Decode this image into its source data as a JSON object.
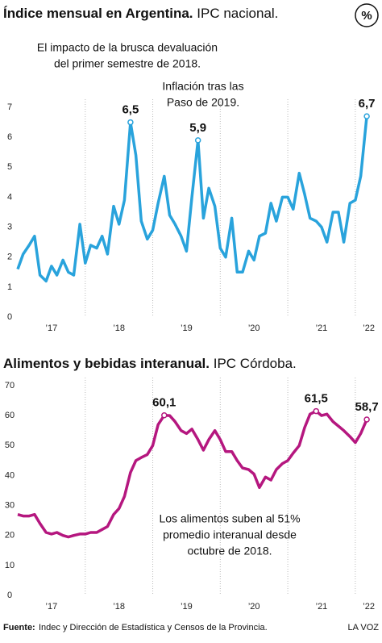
{
  "chart_data": [
    {
      "type": "line",
      "title": "Índice mensual en Argentina.",
      "subtitle": "IPC nacional.",
      "badge": "%",
      "annotations": [
        [
          "El impacto de la brusca devaluación",
          "del primer semestre de 2018."
        ],
        [
          "Inflación tras las",
          "Paso de 2019."
        ]
      ],
      "x": [
        2017,
        2017.08,
        2017.17,
        2017.25,
        2017.33,
        2017.42,
        2017.5,
        2017.58,
        2017.67,
        2017.75,
        2017.83,
        2017.92,
        2018,
        2018.08,
        2018.17,
        2018.25,
        2018.33,
        2018.42,
        2018.5,
        2018.58,
        2018.67,
        2018.75,
        2018.83,
        2018.92,
        2019,
        2019.08,
        2019.17,
        2019.25,
        2019.33,
        2019.42,
        2019.5,
        2019.58,
        2019.67,
        2019.75,
        2019.83,
        2019.92,
        2020,
        2020.08,
        2020.17,
        2020.25,
        2020.33,
        2020.42,
        2020.5,
        2020.58,
        2020.67,
        2020.75,
        2020.83,
        2020.92,
        2021,
        2021.08,
        2021.17,
        2021.25,
        2021.33,
        2021.42,
        2021.5,
        2021.58,
        2021.67,
        2021.75,
        2021.83,
        2021.92,
        2022,
        2022.08,
        2022.17
      ],
      "values": [
        1.6,
        2.1,
        2.4,
        2.7,
        1.4,
        1.2,
        1.7,
        1.4,
        1.9,
        1.5,
        1.4,
        3.1,
        1.8,
        2.4,
        2.3,
        2.7,
        2.1,
        3.7,
        3.1,
        3.9,
        6.5,
        5.4,
        3.2,
        2.6,
        2.9,
        3.8,
        4.7,
        3.4,
        3.1,
        2.7,
        2.2,
        4.0,
        5.9,
        3.3,
        4.3,
        3.7,
        2.3,
        2.0,
        3.3,
        1.5,
        1.5,
        2.2,
        1.9,
        2.7,
        2.8,
        3.8,
        3.2,
        4.0,
        4.0,
        3.6,
        4.8,
        4.1,
        3.3,
        3.2,
        3.0,
        2.5,
        3.5,
        3.5,
        2.5,
        3.8,
        3.9,
        4.7,
        6.7
      ],
      "value_labels": [
        null,
        null,
        null,
        null,
        null,
        null,
        null,
        null,
        null,
        null,
        null,
        null,
        null,
        null,
        null,
        null,
        null,
        null,
        null,
        null,
        "6,5",
        null,
        null,
        null,
        null,
        null,
        null,
        null,
        null,
        null,
        null,
        null,
        "5,9",
        null,
        null,
        null,
        null,
        null,
        null,
        null,
        null,
        null,
        null,
        null,
        null,
        null,
        null,
        null,
        null,
        null,
        null,
        null,
        null,
        null,
        null,
        null,
        null,
        null,
        null,
        null,
        null,
        null,
        "6,7"
      ],
      "color": "#29a3dc",
      "xlim": [
        2017,
        2022.3
      ],
      "xticks": [
        {
          "value": 2017.5,
          "label": "’17"
        },
        {
          "value": 2018.5,
          "label": "’18"
        },
        {
          "value": 2019.5,
          "label": "’19"
        },
        {
          "value": 2020.5,
          "label": "’20"
        },
        {
          "value": 2021.5,
          "label": "’21"
        },
        {
          "value": 2022.2,
          "label": "’22"
        }
      ],
      "xgrid": [
        2018,
        2019,
        2020,
        2021,
        2022
      ],
      "ylim": [
        0,
        7
      ],
      "yticks": [
        0,
        1,
        2,
        3,
        4,
        5,
        6,
        7
      ]
    },
    {
      "type": "line",
      "title": "Alimentos y bebidas interanual.",
      "subtitle": "IPC Córdoba.",
      "annotations": [
        [
          "Los alimentos suben al 51%",
          "promedio interanual desde",
          "octubre de 2018."
        ]
      ],
      "x": [
        2017,
        2017.08,
        2017.17,
        2017.25,
        2017.33,
        2017.42,
        2017.5,
        2017.58,
        2017.67,
        2017.75,
        2017.83,
        2017.92,
        2018,
        2018.08,
        2018.17,
        2018.25,
        2018.33,
        2018.42,
        2018.5,
        2018.58,
        2018.67,
        2018.75,
        2018.83,
        2018.92,
        2019,
        2019.08,
        2019.17,
        2019.25,
        2019.33,
        2019.42,
        2019.5,
        2019.58,
        2019.67,
        2019.75,
        2019.83,
        2019.92,
        2020,
        2020.08,
        2020.17,
        2020.25,
        2020.33,
        2020.42,
        2020.5,
        2020.58,
        2020.67,
        2020.75,
        2020.83,
        2020.92,
        2021,
        2021.08,
        2021.17,
        2021.25,
        2021.33,
        2021.42,
        2021.5,
        2021.58,
        2021.67,
        2021.75,
        2021.83,
        2021.92,
        2022,
        2022.08,
        2022.17
      ],
      "values": [
        27,
        26.5,
        26.5,
        27,
        24,
        21,
        20.5,
        21,
        20,
        19.5,
        20,
        20.5,
        20.5,
        21,
        21,
        22,
        23,
        27,
        29,
        33,
        41,
        45,
        46,
        47,
        50,
        57,
        60.1,
        60,
        58,
        55,
        54,
        55.5,
        52,
        48.5,
        52,
        55,
        52,
        48,
        48,
        45,
        42.5,
        42,
        40.5,
        36,
        39.5,
        38.5,
        42,
        44,
        45,
        47.5,
        50,
        56,
        60.5,
        61.5,
        60,
        60.5,
        58,
        56.5,
        55,
        53,
        51,
        54,
        58.7
      ],
      "value_labels": [
        null,
        null,
        null,
        null,
        null,
        null,
        null,
        null,
        null,
        null,
        null,
        null,
        null,
        null,
        null,
        null,
        null,
        null,
        null,
        null,
        null,
        null,
        null,
        null,
        null,
        null,
        "60,1",
        null,
        null,
        null,
        null,
        null,
        null,
        null,
        null,
        null,
        null,
        null,
        null,
        null,
        null,
        null,
        null,
        null,
        null,
        null,
        null,
        null,
        null,
        null,
        null,
        null,
        null,
        "61,5",
        null,
        null,
        null,
        null,
        null,
        null,
        null,
        null,
        "58,7"
      ],
      "color": "#b5177f",
      "xlim": [
        2017,
        2022.3
      ],
      "xticks": [
        {
          "value": 2017.5,
          "label": "’17"
        },
        {
          "value": 2018.5,
          "label": "’18"
        },
        {
          "value": 2019.5,
          "label": "’19"
        },
        {
          "value": 2020.5,
          "label": "’20"
        },
        {
          "value": 2021.5,
          "label": "’21"
        },
        {
          "value": 2022.2,
          "label": "’22"
        }
      ],
      "xgrid": [
        2018,
        2019,
        2020,
        2021,
        2022
      ],
      "ylim": [
        0,
        70
      ],
      "yticks": [
        0,
        10,
        20,
        30,
        40,
        50,
        60,
        70
      ]
    }
  ],
  "footer": {
    "source_label": "Fuente:",
    "source": "Indec y Dirección de Estadística y Censos de la Provincia.",
    "brand": "LA VOZ"
  }
}
